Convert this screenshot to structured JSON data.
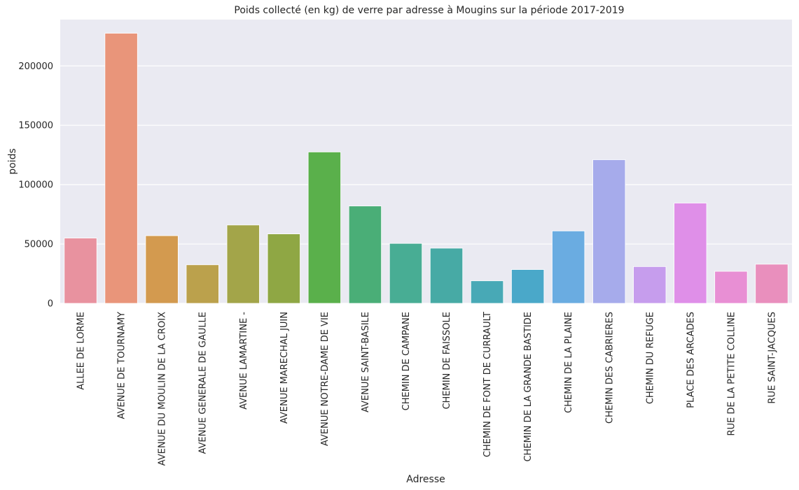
{
  "chart_data": {
    "type": "bar",
    "title": "Poids collecté (en kg) de verre par adresse à Mougins sur la période 2017-2019",
    "xlabel": "Adresse",
    "ylabel": "poids",
    "ylim": [
      0,
      239000
    ],
    "yticks": [
      0,
      50000,
      100000,
      150000,
      200000
    ],
    "grid": true,
    "categories": [
      "ALLEE DE LORME",
      "AVENUE DE TOURNAMY",
      "AVENUE DU MOULIN DE LA CROIX",
      "AVENUE GENERALE DE GAULLE",
      "AVENUE LAMARTINE -",
      "AVENUE MARECHAL JUIN",
      "AVENUE NOTRE-DAME DE VIE",
      "AVENUE SAINT-BASILE",
      "CHEMIN DE CAMPANE",
      "CHEMIN DE FAISSOLE",
      "CHEMIN DE FONT DE CURRAULT",
      "CHEMIN DE LA GRANDE BASTIDE",
      "CHEMIN DE LA PLAINE",
      "CHEMIN DES CABRIERES",
      "CHEMIN DU REFUGE",
      "PLACE DES ARCADES",
      "RUE DE LA PETITE COLLINE",
      "RUE SAINT-JACQUES"
    ],
    "values": [
      55000,
      227500,
      57000,
      32500,
      66000,
      58500,
      127500,
      82000,
      50500,
      46500,
      19000,
      28500,
      61000,
      121000,
      31000,
      84500,
      27000,
      33000
    ],
    "colors": [
      "#e8929f",
      "#e9957a",
      "#d39a4f",
      "#bba14c",
      "#a3a549",
      "#8fa744",
      "#5ab04b",
      "#4aae77",
      "#48ad94",
      "#47aaa5",
      "#48a9b6",
      "#4aa8c9",
      "#6aace1",
      "#a6abeb",
      "#c69ded",
      "#df8fe8",
      "#e88fd4",
      "#e98fbd"
    ]
  }
}
